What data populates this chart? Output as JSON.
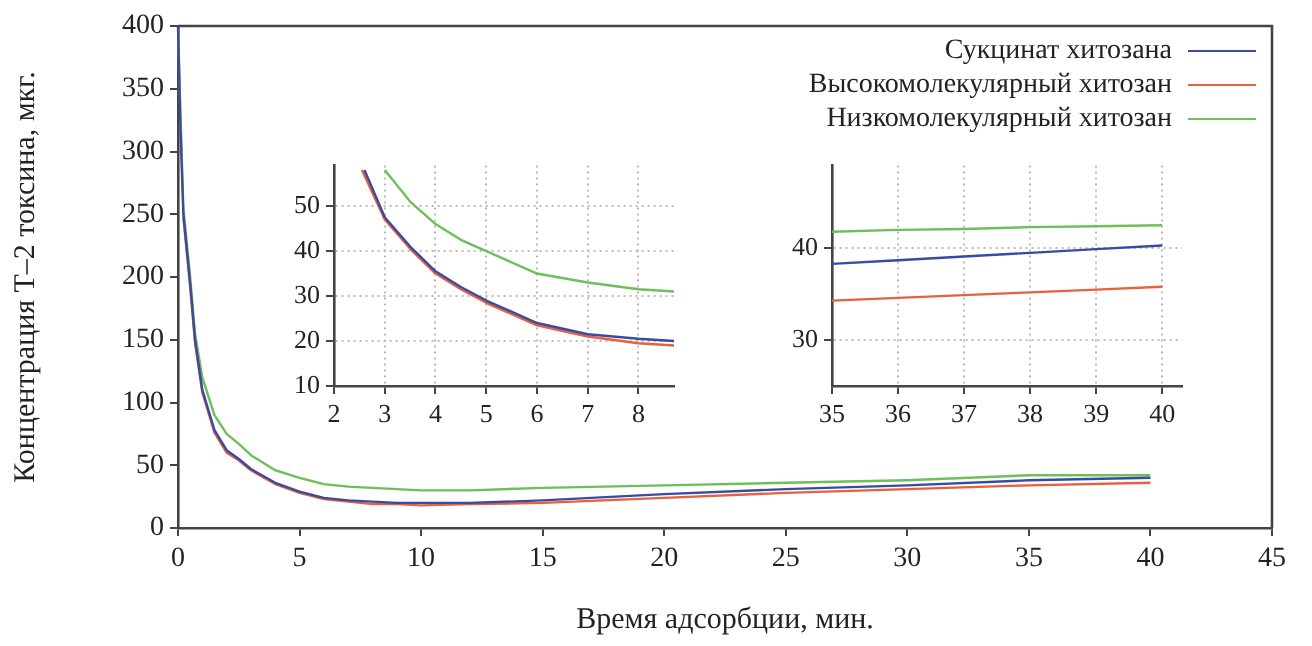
{
  "chart_data": [
    {
      "type": "line",
      "xlabel": "Время адсорбции, мин.",
      "ylabel": "Концентрация Т–2 токсина, мкг.",
      "xlim": [
        0,
        45
      ],
      "ylim": [
        0,
        400
      ],
      "xticks": [
        0,
        5,
        10,
        15,
        20,
        25,
        30,
        35,
        40,
        45
      ],
      "yticks": [
        0,
        50,
        100,
        150,
        200,
        250,
        300,
        350,
        400
      ],
      "grid": false,
      "legend": "top right",
      "line_style": "solid",
      "marker": "none",
      "x": [
        0,
        0.1,
        0.22,
        0.5,
        0.7,
        1,
        1.5,
        2,
        2.5,
        3,
        4,
        5,
        6,
        7,
        8,
        9,
        10,
        12,
        15,
        20,
        25,
        30,
        35,
        40
      ],
      "series": [
        {
          "name": "Сукцинат хитозана",
          "color": "#3a4aa0",
          "values": [
            400,
            320,
            250,
            195,
            150,
            110,
            78,
            62,
            55,
            47,
            36,
            29,
            24,
            22,
            21,
            20,
            20,
            20,
            22,
            27,
            31,
            34,
            38,
            40
          ]
        },
        {
          "name": "Высокомолекулярный хитозан",
          "color": "#e8603c",
          "values": [
            null,
            null,
            248,
            192,
            148,
            108,
            76,
            60,
            54,
            46,
            35,
            28,
            23,
            21,
            19,
            19,
            18,
            19,
            20,
            24,
            28,
            31,
            34,
            36
          ]
        },
        {
          "name": "Низкомолекулярный хитозан",
          "color": "#6cbf5a",
          "values": [
            400,
            330,
            255,
            200,
            155,
            120,
            90,
            75,
            67,
            58,
            46,
            40,
            35,
            33,
            32,
            31,
            30,
            30,
            32,
            34,
            36,
            38,
            42,
            42
          ]
        }
      ]
    },
    {
      "type": "line",
      "xlim": [
        2,
        8.7
      ],
      "ylim": [
        10,
        59
      ],
      "xticks": [
        2,
        3,
        4,
        5,
        6,
        7,
        8
      ],
      "yticks": [
        10,
        20,
        30,
        40,
        50
      ],
      "grid": true,
      "line_style": "solid",
      "marker": "none",
      "series": [
        {
          "color": "#3a4aa0",
          "x": [
            2.6,
            3,
            3.5,
            4,
            4.5,
            5,
            6,
            7,
            8,
            8.7
          ],
          "values": [
            58,
            47.5,
            41,
            35.5,
            32,
            29,
            24,
            21.5,
            20.5,
            20
          ]
        },
        {
          "color": "#e8603c",
          "x": [
            2.55,
            3,
            3.5,
            4,
            4.5,
            5,
            6,
            7,
            8,
            8.7
          ],
          "values": [
            58,
            47,
            40.5,
            35,
            31.5,
            28.5,
            23.5,
            21,
            19.5,
            19
          ]
        },
        {
          "color": "#6cbf5a",
          "x": [
            3,
            3.5,
            4,
            4.5,
            5,
            6,
            7,
            8,
            8.7
          ],
          "values": [
            58,
            51,
            46,
            42.5,
            40,
            35,
            33,
            31.5,
            31
          ]
        }
      ]
    },
    {
      "type": "line",
      "xlim": [
        35,
        40.3
      ],
      "ylim": [
        25,
        49
      ],
      "xticks": [
        35,
        36,
        37,
        38,
        39,
        40
      ],
      "yticks": [
        30,
        40
      ],
      "grid": true,
      "line_style": "solid",
      "marker": "none",
      "x": [
        35,
        36,
        37,
        38,
        39,
        40
      ],
      "series": [
        {
          "color": "#3a4aa0",
          "values": [
            38.3,
            38.7,
            39.1,
            39.5,
            39.9,
            40.3
          ]
        },
        {
          "color": "#e8603c",
          "values": [
            34.3,
            34.6,
            34.9,
            35.2,
            35.5,
            35.8
          ]
        },
        {
          "color": "#6cbf5a",
          "values": [
            41.8,
            42,
            42.1,
            42.3,
            42.4,
            42.5
          ]
        }
      ]
    }
  ]
}
